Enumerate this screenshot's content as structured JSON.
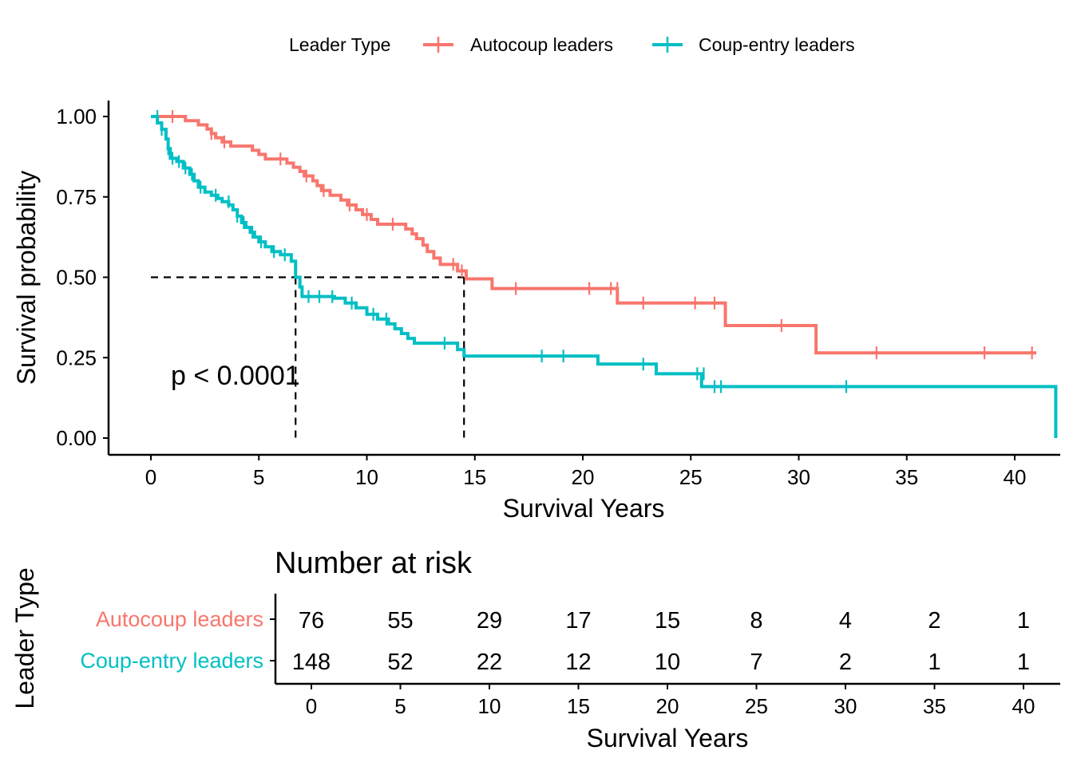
{
  "legend": {
    "title": "Leader Type",
    "placement": "top",
    "items": [
      {
        "label": "Autocoup leaders",
        "color": "#F8766D"
      },
      {
        "label": "Coup-entry leaders",
        "color": "#00BFC4"
      }
    ]
  },
  "annotation": {
    "pvalue": "p < 0.0001"
  },
  "chart_data": [
    {
      "type": "line",
      "subtype": "kaplan-meier step",
      "xlabel": "Survival Years",
      "ylabel": "Survival probability",
      "xlim": [
        -2,
        42
      ],
      "ylim": [
        0,
        1
      ],
      "x_ticks": [
        "0",
        "5",
        "10",
        "15",
        "20",
        "25",
        "30",
        "35",
        "40"
      ],
      "y_ticks": [
        "0.00",
        "0.25",
        "0.50",
        "0.75",
        "1.00"
      ],
      "grid": false,
      "median_lines": [
        6.7,
        14.5
      ],
      "series": [
        {
          "name": "Autocoup leaders",
          "color": "#F8766D",
          "steps": [
            [
              0,
              1.0
            ],
            [
              1.6,
              0.987
            ],
            [
              2.2,
              0.974
            ],
            [
              2.6,
              0.961
            ],
            [
              2.8,
              0.947
            ],
            [
              3.0,
              0.934
            ],
            [
              3.3,
              0.921
            ],
            [
              3.7,
              0.908
            ],
            [
              4.7,
              0.895
            ],
            [
              5.0,
              0.882
            ],
            [
              5.3,
              0.868
            ],
            [
              6.3,
              0.855
            ],
            [
              6.6,
              0.842
            ],
            [
              6.9,
              0.829
            ],
            [
              7.1,
              0.815
            ],
            [
              7.5,
              0.8
            ],
            [
              7.7,
              0.785
            ],
            [
              7.9,
              0.77
            ],
            [
              8.3,
              0.755
            ],
            [
              8.8,
              0.74
            ],
            [
              9.1,
              0.725
            ],
            [
              9.5,
              0.71
            ],
            [
              9.8,
              0.695
            ],
            [
              10.2,
              0.68
            ],
            [
              10.5,
              0.665
            ],
            [
              11.8,
              0.65
            ],
            [
              12.1,
              0.635
            ],
            [
              12.3,
              0.62
            ],
            [
              12.6,
              0.6
            ],
            [
              12.8,
              0.58
            ],
            [
              13.1,
              0.56
            ],
            [
              13.4,
              0.54
            ],
            [
              14.2,
              0.52
            ],
            [
              14.6,
              0.495
            ],
            [
              15.8,
              0.465
            ],
            [
              21.6,
              0.42
            ],
            [
              26.6,
              0.35
            ],
            [
              30.8,
              0.265
            ],
            [
              41.0,
              0.265
            ]
          ],
          "censor": [
            [
              1.0,
              1.0
            ],
            [
              2.8,
              0.947
            ],
            [
              3.4,
              0.921
            ],
            [
              6.0,
              0.868
            ],
            [
              7.2,
              0.815
            ],
            [
              8.0,
              0.77
            ],
            [
              9.2,
              0.725
            ],
            [
              10.0,
              0.695
            ],
            [
              11.2,
              0.665
            ],
            [
              14.0,
              0.54
            ],
            [
              14.4,
              0.52
            ],
            [
              16.9,
              0.465
            ],
            [
              20.3,
              0.465
            ],
            [
              21.3,
              0.465
            ],
            [
              21.6,
              0.465
            ],
            [
              22.8,
              0.42
            ],
            [
              25.2,
              0.42
            ],
            [
              26.1,
              0.42
            ],
            [
              29.2,
              0.35
            ],
            [
              33.6,
              0.265
            ],
            [
              38.6,
              0.265
            ],
            [
              40.8,
              0.265
            ]
          ]
        },
        {
          "name": "Coup-entry leaders",
          "color": "#00BFC4",
          "steps": [
            [
              0,
              1.0
            ],
            [
              0.3,
              0.98
            ],
            [
              0.5,
              0.96
            ],
            [
              0.7,
              0.93
            ],
            [
              0.8,
              0.9
            ],
            [
              0.9,
              0.87
            ],
            [
              1.2,
              0.86
            ],
            [
              1.5,
              0.84
            ],
            [
              1.8,
              0.82
            ],
            [
              2.0,
              0.8
            ],
            [
              2.2,
              0.78
            ],
            [
              2.5,
              0.765
            ],
            [
              2.8,
              0.755
            ],
            [
              3.1,
              0.745
            ],
            [
              3.3,
              0.735
            ],
            [
              3.6,
              0.725
            ],
            [
              3.8,
              0.71
            ],
            [
              4.0,
              0.69
            ],
            [
              4.2,
              0.67
            ],
            [
              4.4,
              0.655
            ],
            [
              4.6,
              0.64
            ],
            [
              4.8,
              0.625
            ],
            [
              5.0,
              0.61
            ],
            [
              5.3,
              0.595
            ],
            [
              5.6,
              0.58
            ],
            [
              6.0,
              0.57
            ],
            [
              6.5,
              0.55
            ],
            [
              6.7,
              0.5
            ],
            [
              6.9,
              0.47
            ],
            [
              7.0,
              0.44
            ],
            [
              8.5,
              0.435
            ],
            [
              9.0,
              0.42
            ],
            [
              9.5,
              0.405
            ],
            [
              10.0,
              0.385
            ],
            [
              10.5,
              0.37
            ],
            [
              11.0,
              0.355
            ],
            [
              11.3,
              0.34
            ],
            [
              11.6,
              0.325
            ],
            [
              11.9,
              0.31
            ],
            [
              12.2,
              0.295
            ],
            [
              14.2,
              0.275
            ],
            [
              14.5,
              0.255
            ],
            [
              20.7,
              0.23
            ],
            [
              23.4,
              0.2
            ],
            [
              25.5,
              0.16
            ],
            [
              41.9,
              0.16
            ],
            [
              41.9,
              0.0
            ]
          ],
          "censor": [
            [
              0.3,
              1.0
            ],
            [
              0.5,
              0.96
            ],
            [
              0.8,
              0.9
            ],
            [
              1.0,
              0.87
            ],
            [
              1.3,
              0.86
            ],
            [
              1.6,
              0.84
            ],
            [
              1.9,
              0.82
            ],
            [
              2.3,
              0.78
            ],
            [
              3.0,
              0.755
            ],
            [
              3.6,
              0.735
            ],
            [
              4.0,
              0.69
            ],
            [
              4.3,
              0.67
            ],
            [
              4.7,
              0.64
            ],
            [
              5.1,
              0.61
            ],
            [
              5.7,
              0.58
            ],
            [
              6.2,
              0.57
            ],
            [
              7.3,
              0.44
            ],
            [
              7.8,
              0.44
            ],
            [
              8.4,
              0.44
            ],
            [
              9.3,
              0.42
            ],
            [
              10.3,
              0.385
            ],
            [
              10.9,
              0.37
            ],
            [
              13.6,
              0.295
            ],
            [
              18.1,
              0.255
            ],
            [
              19.1,
              0.255
            ],
            [
              22.8,
              0.23
            ],
            [
              25.3,
              0.2
            ],
            [
              25.6,
              0.2
            ],
            [
              26.1,
              0.16
            ],
            [
              26.4,
              0.16
            ],
            [
              32.2,
              0.16
            ]
          ]
        }
      ]
    },
    {
      "type": "table",
      "title": "Number at risk",
      "ylabel": "Leader Type",
      "xlabel": "Survival Years",
      "x_ticks": [
        "0",
        "5",
        "10",
        "15",
        "20",
        "25",
        "30",
        "35",
        "40"
      ],
      "rows": [
        {
          "label": "Autocoup leaders",
          "color": "#F8766D",
          "values": [
            "76",
            "55",
            "29",
            "17",
            "15",
            "8",
            "4",
            "2",
            "1"
          ]
        },
        {
          "label": "Coup-entry leaders",
          "color": "#00BFC4",
          "values": [
            "148",
            "52",
            "22",
            "12",
            "10",
            "7",
            "2",
            "1",
            "1"
          ]
        }
      ]
    }
  ]
}
